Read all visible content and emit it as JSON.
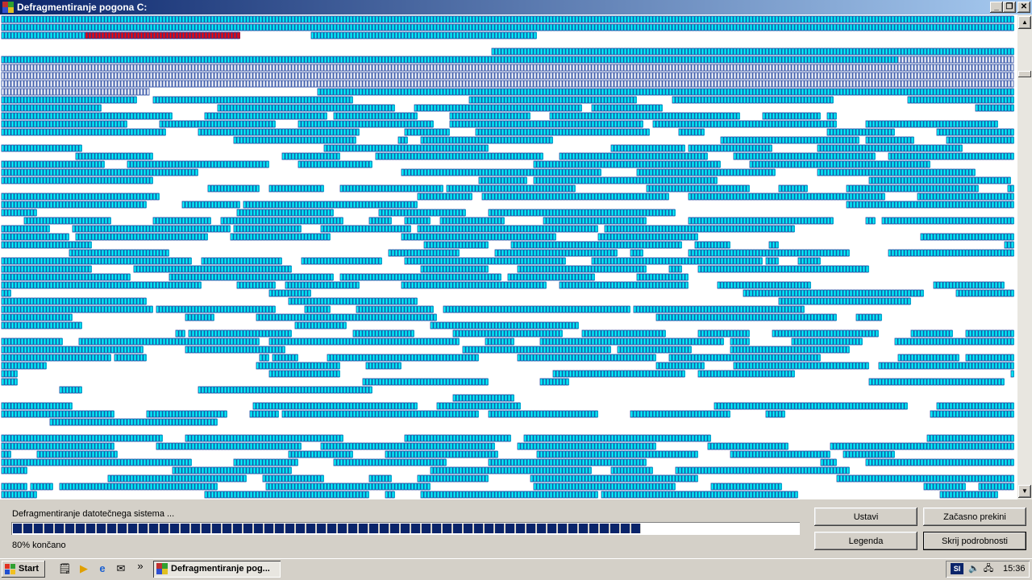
{
  "window": {
    "title": "Defragmentiranje pogona C:"
  },
  "caption_buttons": [
    "minimize-icon",
    "restore-icon",
    "close-icon"
  ],
  "cluster_map": {
    "colors": {
      "contiguous": "#00ffff",
      "fragmented": "#ff0000",
      "unmovable": "#ffffff",
      "free": "#ffffff",
      "cell_border": "#1a3c9a"
    }
  },
  "status": {
    "message": "Defragmentiranje datotečnega sistema ...",
    "percent_text": "80% končano",
    "progress": 0.8
  },
  "buttons": {
    "stop": "Ustavi",
    "pause": "Začasno prekini",
    "legend": "Legenda",
    "hide_details": "Skrij podrobnosti"
  },
  "taskbar": {
    "start_label": "Start",
    "quick_launch": [
      "show-desktop-icon",
      "media-player-icon",
      "internet-explorer-icon",
      "outlook-express-icon"
    ],
    "overflow": "»",
    "task_label": "Defragmentiranje pog...",
    "language": "SI",
    "tray_icons": [
      "volume-icon",
      "network-icon"
    ],
    "clock": "15:36"
  }
}
